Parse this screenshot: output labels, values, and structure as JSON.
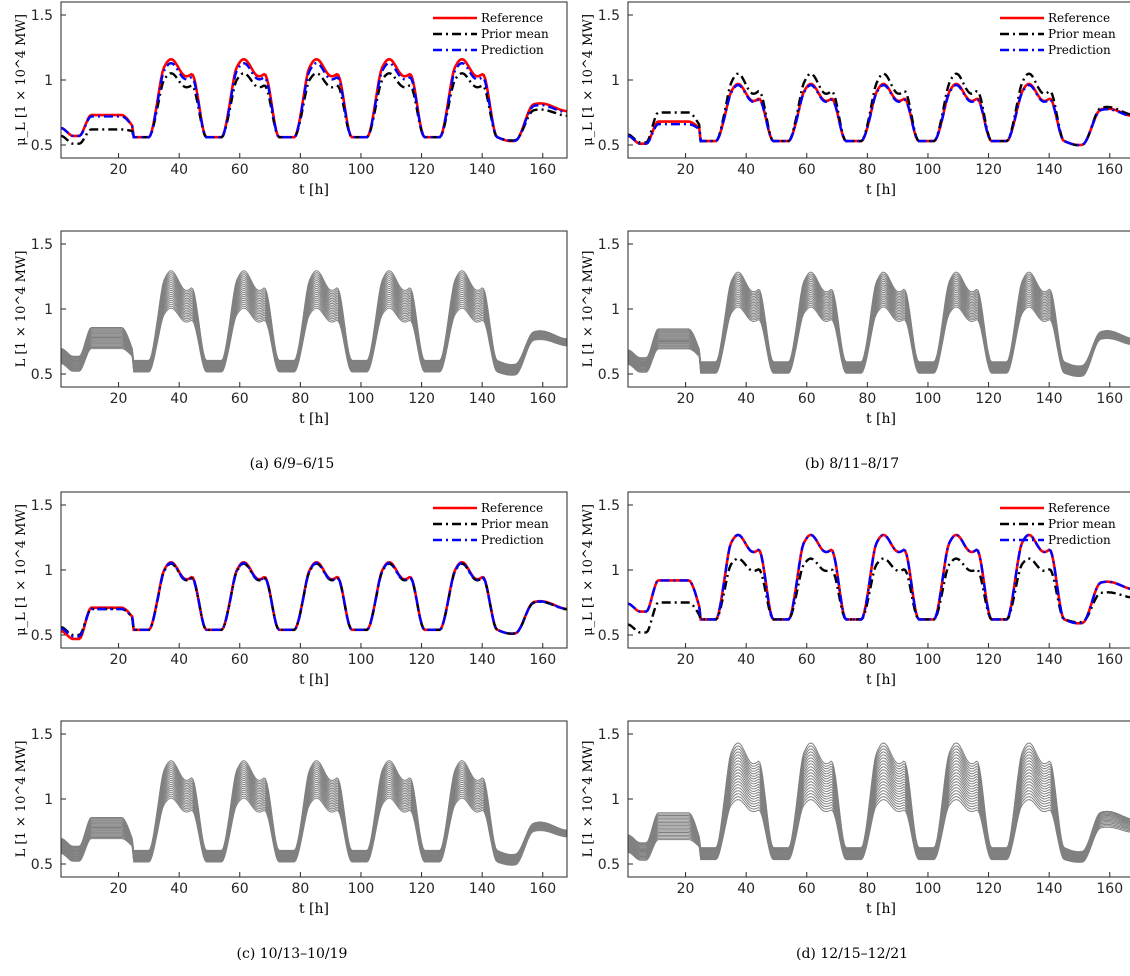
{
  "chart_data": [
    {
      "panel": "a",
      "type": "line",
      "xlabel": "t [h]",
      "ylabel": "μ_L [1 × 10^4 MW]",
      "xlim": [
        1,
        168
      ],
      "ylim": [
        0.4,
        1.6
      ],
      "xticks": [
        20,
        40,
        60,
        80,
        100,
        120,
        140,
        160
      ],
      "yticks": [
        0.5,
        1,
        1.5
      ],
      "legend": "top-right",
      "base": 0.56,
      "amp": 0.52,
      "ev": 0.7,
      "evAmp": 0.09,
      "series": [
        {
          "name": "Reference",
          "color": "#ff0000",
          "dash": "solid",
          "scale": 1.0,
          "start": 0.63,
          "sat": 0.73
        },
        {
          "name": "Prior mean",
          "color": "#000000",
          "dash": "dashdot",
          "scale": 0.82,
          "start": 0.57,
          "sat": 0.62
        },
        {
          "name": "Prediction",
          "color": "#0000ff",
          "dash": "dashdot",
          "scale": 0.95,
          "start": 0.63,
          "sat": 0.72
        }
      ]
    },
    {
      "panel": "a",
      "type": "line",
      "xlabel": "t [h]",
      "ylabel": "L [1 × 10^4 MW]",
      "xlim": [
        1,
        168
      ],
      "ylim": [
        0.4,
        1.6
      ],
      "xticks": [
        20,
        40,
        60,
        80,
        100,
        120,
        140,
        160
      ],
      "yticks": [
        0.5,
        1,
        1.5
      ],
      "samples": 20,
      "color": "#808080",
      "low": 0.82,
      "high": 1.15,
      "base": 0.56,
      "amp": 0.52,
      "ev": 0.7,
      "evAmp": 0.09
    },
    {
      "panel": "b",
      "type": "line",
      "xlabel": "t [h]",
      "ylabel": "μ_L [1 × 10^4 MW]",
      "xlim": [
        1,
        168
      ],
      "ylim": [
        0.4,
        1.6
      ],
      "xticks": [
        20,
        40,
        60,
        80,
        100,
        120,
        140,
        160
      ],
      "yticks": [
        0.5,
        1,
        1.5
      ],
      "legend": "top-right",
      "base": 0.53,
      "amp": 0.36,
      "ev": 0.7,
      "evAmp": 0.05,
      "series": [
        {
          "name": "Reference",
          "color": "#ff0000",
          "dash": "solid",
          "scale": 1.0,
          "start": 0.57,
          "sat": 0.68
        },
        {
          "name": "Prior mean",
          "color": "#000000",
          "dash": "dashdot",
          "scale": 1.18,
          "start": 0.58,
          "sat": 0.75
        },
        {
          "name": "Prediction",
          "color": "#0000ff",
          "dash": "dashdot",
          "scale": 0.98,
          "start": 0.57,
          "sat": 0.66
        }
      ]
    },
    {
      "panel": "b",
      "type": "line",
      "xlabel": "t [h]",
      "ylabel": "L [1 × 10^4 MW]",
      "xlim": [
        1,
        168
      ],
      "ylim": [
        0.4,
        1.6
      ],
      "xticks": [
        20,
        40,
        60,
        80,
        100,
        120,
        140,
        160
      ],
      "yticks": [
        0.5,
        1,
        1.5
      ],
      "samples": 20,
      "color": "#808080",
      "low": 0.85,
      "high": 1.15,
      "base": 0.55,
      "amp": 0.52,
      "ev": 0.72,
      "evAmp": 0.07
    },
    {
      "panel": "c",
      "type": "line",
      "xlabel": "t [h]",
      "ylabel": "μ_L [1 × 10^4 MW]",
      "xlim": [
        1,
        168
      ],
      "ylim": [
        0.4,
        1.6
      ],
      "xticks": [
        20,
        40,
        60,
        80,
        100,
        120,
        140,
        160
      ],
      "yticks": [
        0.5,
        1,
        1.5
      ],
      "legend": "top-right",
      "base": 0.54,
      "amp": 0.44,
      "ev": 0.68,
      "evAmp": 0.05,
      "series": [
        {
          "name": "Reference",
          "color": "#ff0000",
          "dash": "solid",
          "scale": 1.0,
          "start": 0.53,
          "sat": 0.71
        },
        {
          "name": "Prior mean",
          "color": "#000000",
          "dash": "dashdot",
          "scale": 0.98,
          "start": 0.56,
          "sat": 0.7
        },
        {
          "name": "Prediction",
          "color": "#0000ff",
          "dash": "dashdot",
          "scale": 0.99,
          "start": 0.55,
          "sat": 0.7
        }
      ]
    },
    {
      "panel": "c",
      "type": "line",
      "xlabel": "t [h]",
      "ylabel": "L [1 × 10^4 MW]",
      "xlim": [
        1,
        168
      ],
      "ylim": [
        0.4,
        1.6
      ],
      "xticks": [
        20,
        40,
        60,
        80,
        100,
        120,
        140,
        160
      ],
      "yticks": [
        0.5,
        1,
        1.5
      ],
      "samples": 20,
      "color": "#808080",
      "low": 0.82,
      "high": 1.15,
      "base": 0.56,
      "amp": 0.52,
      "ev": 0.7,
      "evAmp": 0.08
    },
    {
      "panel": "d",
      "type": "line",
      "xlabel": "t [h]",
      "ylabel": "μ_L [1 × 10^4 MW]",
      "xlim": [
        1,
        168
      ],
      "ylim": [
        0.4,
        1.6
      ],
      "xticks": [
        20,
        40,
        60,
        80,
        100,
        120,
        140,
        160
      ],
      "yticks": [
        0.5,
        1,
        1.5
      ],
      "legend": "top-right",
      "base": 0.62,
      "amp": 0.57,
      "ev": 0.78,
      "evAmp": 0.1,
      "series": [
        {
          "name": "Reference",
          "color": "#ff0000",
          "dash": "solid",
          "scale": 1.0,
          "start": 0.74,
          "sat": 0.92
        },
        {
          "name": "Prior mean",
          "color": "#000000",
          "dash": "dashdot",
          "scale": 0.72,
          "start": 0.58,
          "sat": 0.75
        },
        {
          "name": "Prediction",
          "color": "#0000ff",
          "dash": "dashdot",
          "scale": 1.0,
          "start": 0.74,
          "sat": 0.92
        }
      ]
    },
    {
      "panel": "d",
      "type": "line",
      "xlabel": "t [h]",
      "ylabel": "L [1 × 10^4 MW]",
      "xlim": [
        1,
        168
      ],
      "ylim": [
        0.4,
        1.6
      ],
      "xticks": [
        20,
        40,
        60,
        80,
        100,
        120,
        140,
        160
      ],
      "yticks": [
        0.5,
        1,
        1.5
      ],
      "samples": 20,
      "color": "#808080",
      "low": 0.7,
      "high": 1.22,
      "base": 0.58,
      "amp": 0.58,
      "ev": 0.76,
      "evAmp": 0.1
    }
  ],
  "captions": [
    "(a) 6/9–6/15",
    "(b) 8/11–8/17",
    "(c) 10/13–10/19",
    "(d) 12/15–12/21"
  ]
}
